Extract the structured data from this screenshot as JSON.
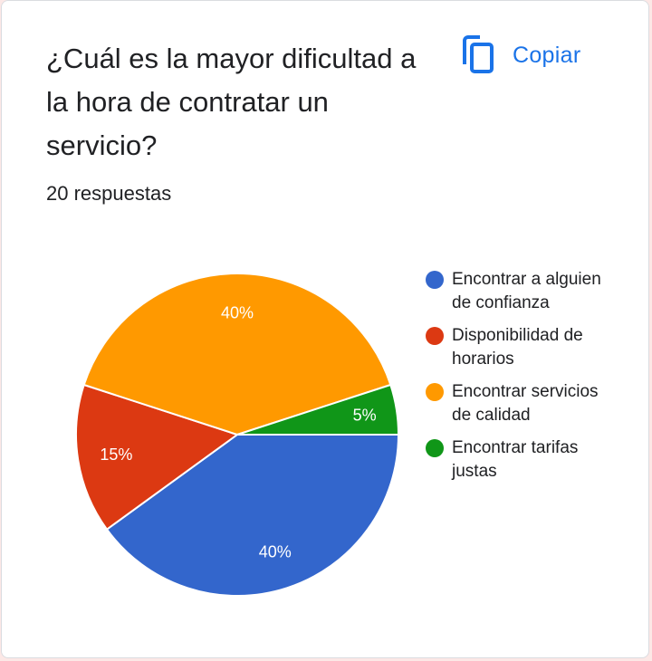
{
  "question": "¿Cuál es la mayor dificultad a la hora de contratar un servicio?",
  "response_count": "20 respuestas",
  "copy_button": {
    "label": "Copiar",
    "icon": "copy-icon"
  },
  "colors": {
    "accent": "#1a73e8"
  },
  "chart_data": {
    "type": "pie",
    "series": [
      {
        "name": "Encontrar a alguien de confianza",
        "value": 40,
        "label": "40%",
        "color": "#3366cc"
      },
      {
        "name": "Disponibilidad de horarios",
        "value": 15,
        "label": "15%",
        "color": "#dc3912"
      },
      {
        "name": "Encontrar servicios de calidad",
        "value": 40,
        "label": "40%",
        "color": "#ff9900"
      },
      {
        "name": "Encontrar tarifas justas",
        "value": 5,
        "label": "5%",
        "color": "#109618"
      }
    ],
    "legend_position": "right"
  }
}
